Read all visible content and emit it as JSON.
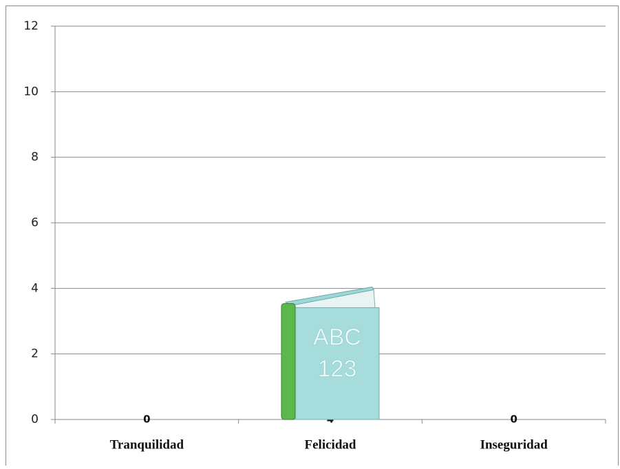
{
  "chart_data": {
    "type": "picture-bar",
    "categories": [
      "Tranquilidad",
      "Felicidad",
      "Inseguridad"
    ],
    "values": [
      0,
      4,
      0
    ],
    "bar_picture_text": [
      "ABC",
      "123"
    ],
    "ylim": [
      0,
      12
    ],
    "yticks": [
      0,
      2,
      4,
      6,
      8,
      10,
      12
    ],
    "grid": true
  }
}
